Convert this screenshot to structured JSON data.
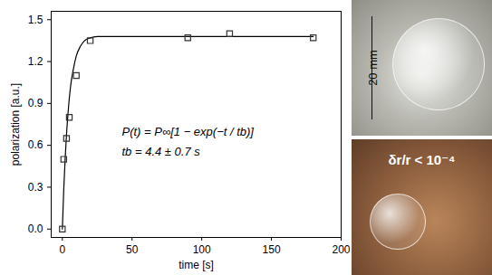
{
  "chart_data": {
    "type": "scatter",
    "xlabel": "time [s]",
    "ylabel": "polarization [a.u.]",
    "xlim": [
      -8,
      200
    ],
    "ylim": [
      -0.06,
      1.56
    ],
    "xticks": [
      0,
      50,
      100,
      150,
      200
    ],
    "yticks": [
      {
        "value": 0,
        "label": "0.0"
      },
      0.3,
      0.6,
      0.9,
      1.2,
      1.5
    ],
    "annotations": [
      "P(t) = P∞[1 − exp(−t / tb)]",
      "tb = 4.4 ± 0.7 s"
    ],
    "series": [
      {
        "type": "line",
        "color": "#000000",
        "line_style": "solid",
        "x": [
          0,
          1,
          2,
          3,
          4,
          6,
          8,
          10,
          13,
          16,
          20,
          25,
          30,
          40,
          60,
          100,
          140,
          180
        ],
        "values": [
          0,
          0.28,
          0.5,
          0.68,
          0.82,
          1.03,
          1.15,
          1.24,
          1.31,
          1.35,
          1.37,
          1.38,
          1.38,
          1.38,
          1.38,
          1.38,
          1.38,
          1.38
        ]
      },
      {
        "type": "scatter",
        "color": "#333333",
        "marker": "square",
        "x": [
          0,
          1,
          3,
          5,
          10,
          20,
          90,
          120,
          180
        ],
        "values": [
          0,
          0.5,
          0.65,
          0.8,
          1.1,
          1.35,
          1.37,
          1.4,
          1.37
        ]
      }
    ]
  },
  "photos": [
    "20 mm",
    "δr/r < 10⁻⁴"
  ]
}
